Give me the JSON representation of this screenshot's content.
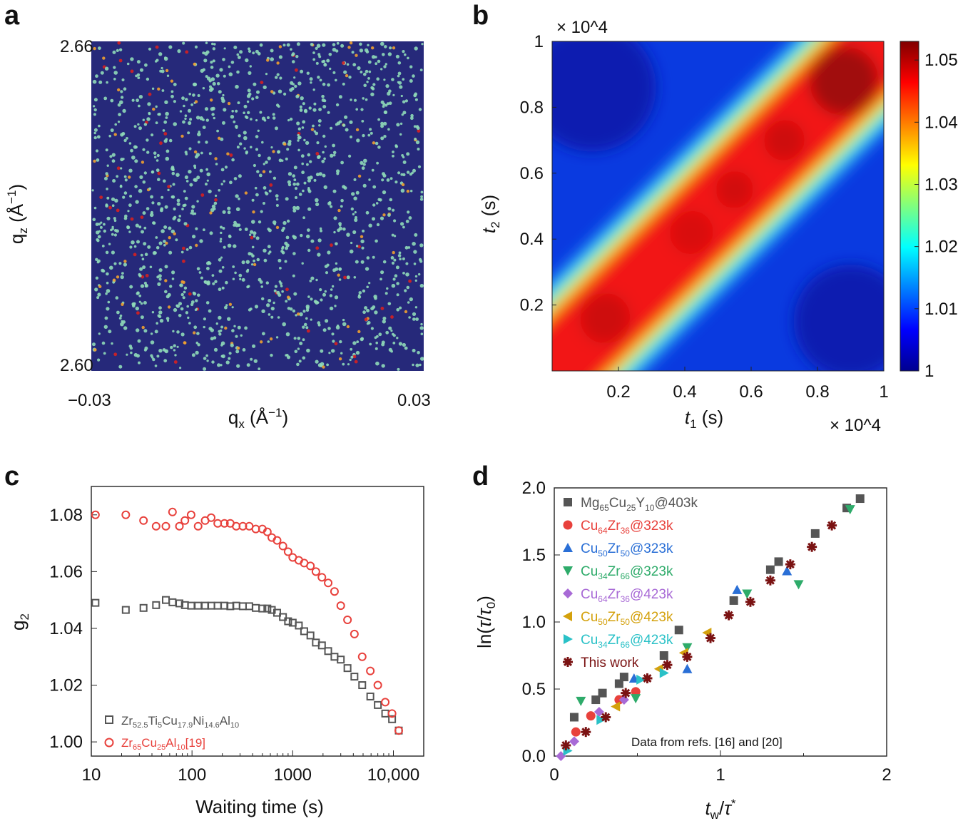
{
  "chart_data": [
    {
      "panel": "a",
      "type": "heatmap",
      "description_free": true,
      "xlabel": "q_x (Å^-1)",
      "ylabel": "q_z (Å^-1)",
      "xlim": [
        -0.03,
        0.03
      ],
      "ylim": [
        2.6,
        2.66
      ],
      "x_tick_labels": [
        "−0.03",
        "0.03"
      ],
      "y_tick_labels": [
        "2.66",
        "2.60"
      ],
      "colors": {
        "background": "#26297a",
        "speckle": "#8fd9b8",
        "hot": "#f0a030",
        "peak": "#d62020"
      }
    },
    {
      "panel": "b",
      "type": "heatmap",
      "xlabel": "t1 (s)",
      "ylabel": "t2 (s)",
      "xlim": [
        0,
        10000
      ],
      "ylim": [
        0,
        10000
      ],
      "x_ticks": [
        2000,
        4000,
        6000,
        8000,
        10000
      ],
      "x_tick_labels": [
        "0.2",
        "0.4",
        "0.6",
        "0.8",
        "1"
      ],
      "y_ticks": [
        2000,
        4000,
        6000,
        8000,
        10000
      ],
      "y_tick_labels": [
        "0.2",
        "0.4",
        "0.6",
        "0.8",
        "1"
      ],
      "exponent_label": "× 10^4",
      "colorbar": {
        "min": 1.0,
        "max": 1.053,
        "ticks": [
          1,
          1.01,
          1.02,
          1.03,
          1.04,
          1.05
        ],
        "tick_labels": [
          "1",
          "1.01",
          "1.02",
          "1.03",
          "1.04",
          "1.05"
        ]
      },
      "diagonal_peak_value": 1.05
    },
    {
      "panel": "c",
      "type": "scatter",
      "xscale": "log",
      "xlabel": "Waiting time (s)",
      "ylabel": "g_2",
      "xlim": [
        10,
        20000
      ],
      "ylim": [
        0.995,
        1.09
      ],
      "x_ticks": [
        10,
        100,
        1000,
        10000
      ],
      "x_tick_labels": [
        "10",
        "100",
        "1000",
        "10,000"
      ],
      "y_ticks": [
        1.0,
        1.02,
        1.04,
        1.06,
        1.08
      ],
      "y_tick_labels": [
        "1.00",
        "1.02",
        "1.04",
        "1.06",
        "1.08"
      ],
      "series": [
        {
          "name": "Zr52.5Ti5Cu17.9Ni14.6Al10",
          "marker": "square-open",
          "color": "#555555",
          "x": [
            11,
            22,
            33,
            44,
            55,
            64,
            75,
            85,
            98,
            115,
            135,
            155,
            180,
            210,
            240,
            275,
            320,
            370,
            430,
            500,
            560,
            620,
            700,
            800,
            900,
            1000,
            1150,
            1300,
            1500,
            1700,
            1950,
            2250,
            2600,
            3000,
            3500,
            4100,
            4900,
            5900,
            7000,
            8300,
            9700,
            11300
          ],
          "y": [
            1.049,
            1.0465,
            1.0472,
            1.0482,
            1.05,
            1.0492,
            1.0488,
            1.0482,
            1.048,
            1.048,
            1.048,
            1.048,
            1.048,
            1.048,
            1.0478,
            1.048,
            1.0478,
            1.0478,
            1.0472,
            1.047,
            1.047,
            1.0465,
            1.0455,
            1.044,
            1.0425,
            1.042,
            1.041,
            1.039,
            1.0375,
            1.035,
            1.034,
            1.032,
            1.03,
            1.029,
            1.026,
            1.023,
            1.02,
            1.016,
            1.013,
            1.01,
            1.008,
            1.004
          ]
        },
        {
          "name": "Zr65Cu25Al10[19]",
          "marker": "circle-open",
          "color": "#e8413c",
          "x": [
            11,
            22,
            33,
            44,
            55,
            64,
            75,
            85,
            98,
            115,
            135,
            155,
            180,
            210,
            240,
            275,
            320,
            370,
            430,
            500,
            560,
            620,
            700,
            800,
            900,
            1000,
            1150,
            1300,
            1500,
            1700,
            1950,
            2250,
            2600,
            3000,
            3500,
            4100,
            4900,
            5900,
            7000,
            8300,
            9700,
            11300
          ],
          "y": [
            1.08,
            1.08,
            1.078,
            1.076,
            1.076,
            1.081,
            1.076,
            1.078,
            1.08,
            1.076,
            1.078,
            1.079,
            1.077,
            1.077,
            1.077,
            1.076,
            1.076,
            1.076,
            1.075,
            1.075,
            1.074,
            1.072,
            1.071,
            1.069,
            1.067,
            1.065,
            1.064,
            1.063,
            1.062,
            1.06,
            1.058,
            1.056,
            1.053,
            1.048,
            1.043,
            1.038,
            1.03,
            1.025,
            1.02,
            1.014,
            1.01,
            1.004
          ]
        }
      ]
    },
    {
      "panel": "d",
      "type": "scatter",
      "xlabel": "t_w/τ*",
      "ylabel": "ln(τ/τ0)",
      "xlim": [
        0,
        2
      ],
      "ylim": [
        0,
        2
      ],
      "x_ticks": [
        0,
        1,
        2
      ],
      "x_tick_labels": [
        "0",
        "1",
        "2"
      ],
      "y_ticks": [
        0,
        0.5,
        1.0,
        1.5,
        2.0
      ],
      "y_tick_labels": [
        "0.0",
        "0.5",
        "1.0",
        "1.5",
        "2.0"
      ],
      "annotation": "Data from refs. [16] and [20]",
      "series": [
        {
          "name": "Mg65Cu25Y10@403k",
          "marker": "square",
          "color": "#555555",
          "x": [
            0.12,
            0.25,
            0.29,
            0.39,
            0.42,
            0.66,
            0.75,
            1.08,
            1.3,
            1.35,
            1.57,
            1.76,
            1.84
          ],
          "y": [
            0.29,
            0.42,
            0.47,
            0.54,
            0.59,
            0.75,
            0.94,
            1.16,
            1.39,
            1.45,
            1.66,
            1.85,
            1.92
          ]
        },
        {
          "name": "Cu64Zr36@323k",
          "marker": "circle",
          "color": "#e8413c",
          "x": [
            0.13,
            0.22,
            0.39,
            0.49
          ],
          "y": [
            0.18,
            0.3,
            0.42,
            0.48
          ]
        },
        {
          "name": "Cu50Zr50@323k",
          "marker": "triangle-up",
          "color": "#2a6fd6",
          "x": [
            0.48,
            0.8,
            1.1,
            1.4
          ],
          "y": [
            0.58,
            0.65,
            1.24,
            1.38
          ]
        },
        {
          "name": "Cu34Zr66@323k",
          "marker": "triangle-down",
          "color": "#2eab6a",
          "x": [
            0.16,
            0.49,
            0.8,
            1.16,
            1.47,
            1.78
          ],
          "y": [
            0.41,
            0.43,
            0.81,
            1.21,
            1.28,
            1.84
          ]
        },
        {
          "name": "Cu64Zr36@423k",
          "marker": "diamond",
          "color": "#a86ad6",
          "x": [
            0.04,
            0.12,
            0.27,
            0.42
          ],
          "y": [
            0.0,
            0.11,
            0.33,
            0.42
          ]
        },
        {
          "name": "Cu50Zr50@423k",
          "marker": "triangle-left",
          "color": "#d4a10c",
          "x": [
            0.37,
            0.63,
            0.78,
            0.92
          ],
          "y": [
            0.37,
            0.65,
            0.77,
            0.92
          ]
        },
        {
          "name": "Cu34Zr66@423k",
          "marker": "triangle-right",
          "color": "#2ac1c7",
          "x": [
            0.08,
            0.28,
            0.52,
            0.66
          ],
          "y": [
            0.04,
            0.27,
            0.57,
            0.62
          ]
        },
        {
          "name": "This work",
          "marker": "asterisk",
          "color": "#7a1212",
          "x": [
            0.07,
            0.19,
            0.31,
            0.43,
            0.56,
            0.68,
            0.8,
            0.94,
            1.05,
            1.18,
            1.3,
            1.42,
            1.55,
            1.67
          ],
          "y": [
            0.08,
            0.18,
            0.29,
            0.47,
            0.58,
            0.68,
            0.74,
            0.88,
            1.05,
            1.15,
            1.31,
            1.43,
            1.56,
            1.72
          ]
        }
      ]
    }
  ],
  "panels": {
    "a": "a",
    "b": "b",
    "c": "c",
    "d": "d"
  }
}
